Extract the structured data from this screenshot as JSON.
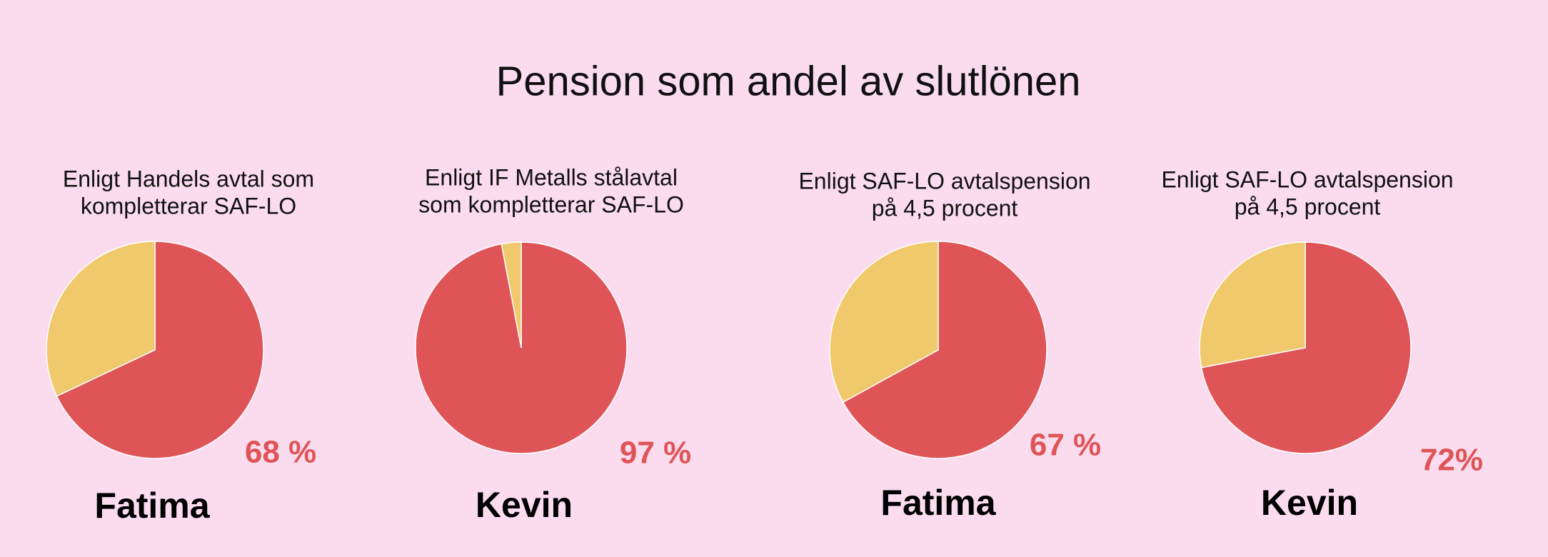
{
  "title": "Pension som andel av slutlönen",
  "chart_data": [
    {
      "type": "pie",
      "title": [
        "Enligt Handels avtal som",
        "kompletterar SAF-LO"
      ],
      "label": "Fatima",
      "values": [
        68,
        32
      ],
      "value_labels": [
        "68 %",
        null
      ],
      "colors": [
        "#de5457",
        "#f0c96c"
      ]
    },
    {
      "type": "pie",
      "title": [
        "Enligt IF Metalls stålavtal",
        "som kompletterar SAF-LO"
      ],
      "label": "Kevin",
      "values": [
        97,
        3
      ],
      "value_labels": [
        "97 %",
        null
      ],
      "colors": [
        "#de5457",
        "#f0c96c"
      ]
    },
    {
      "type": "pie",
      "title": [
        "Enligt SAF-LO avtalspension",
        "på 4,5 procent"
      ],
      "label": "Fatima",
      "values": [
        67,
        33
      ],
      "value_labels": [
        "67 %",
        null
      ],
      "colors": [
        "#de5457",
        "#f0c96c"
      ]
    },
    {
      "type": "pie",
      "title": [
        "Enligt SAF-LO avtalspension",
        "på 4,5 procent"
      ],
      "label": "Kevin",
      "values": [
        72,
        28
      ],
      "value_labels": [
        "72%",
        null
      ],
      "colors": [
        "#de5457",
        "#f0c96c"
      ]
    }
  ]
}
